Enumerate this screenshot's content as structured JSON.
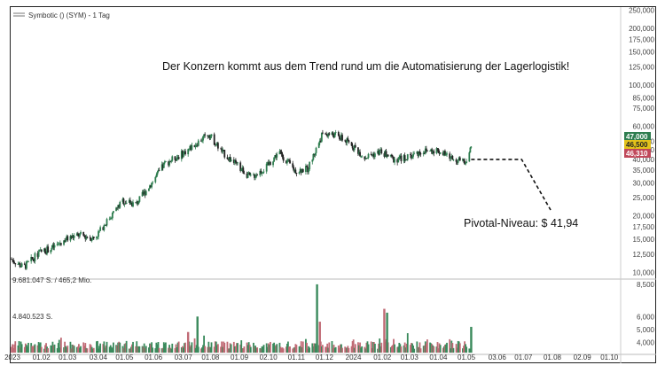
{
  "chart_header": {
    "symbol_label": "Symbotic () (SYM) - 1 Tag",
    "headline": "Der Konzern kommt aus dem Trend rund um die Automatisierung der Lagerlogistik!",
    "pivot_label": "Pivotal-Niveau: $ 41,94",
    "volume_label_top": "9.681.047 S. / 465,2 Mio.",
    "volume_label_mid": "4.840.523 S."
  },
  "colors": {
    "up": "#2e7d4f",
    "down": "#c0392b",
    "vol_up": "#3a8a5c",
    "vol_down": "#c06a75",
    "badge_green": "#2e7d4f",
    "badge_yellow": "#e3c21a",
    "badge_red": "#c0485a",
    "forecast": "#111111"
  },
  "chart_data": {
    "type": "candlestick",
    "y_scale": "log",
    "ylim": [
      9500,
      260000
    ],
    "y_ticks": [
      "250,000",
      "200,000",
      "175,000",
      "150,000",
      "125,000",
      "100,000",
      "85,000",
      "75,000",
      "60,000",
      "50,000",
      "45,000",
      "40,000",
      "35,000",
      "30,000",
      "25,000",
      "20,000",
      "17,500",
      "15,000",
      "12,500",
      "10,000"
    ],
    "y_tick_values": [
      250000,
      200000,
      175000,
      150000,
      125000,
      100000,
      85000,
      75000,
      60000,
      50000,
      45000,
      40000,
      35000,
      30000,
      25000,
      20000,
      17500,
      15000,
      12500,
      10000
    ],
    "x_ticks": [
      "2023",
      "01.02",
      "01.03",
      "03.04",
      "01.05",
      "01.06",
      "03.07",
      "01.08",
      "01.09",
      "02.10",
      "01.11",
      "01.12",
      "2024",
      "01.02",
      "01.03",
      "01.04",
      "01.05",
      "03.06",
      "01.07",
      "01.08",
      "02.09",
      "01.10"
    ],
    "price_path": [
      [
        "2023-01-01",
        11.8
      ],
      [
        "2023-01-15",
        10.6
      ],
      [
        "2023-02-01",
        12.8
      ],
      [
        "2023-02-15",
        13.5
      ],
      [
        "2023-03-01",
        15.0
      ],
      [
        "2023-03-15",
        15.8
      ],
      [
        "2023-04-01",
        15.2
      ],
      [
        "2023-04-15",
        19.0
      ],
      [
        "2023-05-01",
        24.0
      ],
      [
        "2023-05-15",
        23.0
      ],
      [
        "2023-06-01",
        30.0
      ],
      [
        "2023-06-15",
        38.0
      ],
      [
        "2023-07-01",
        42.0
      ],
      [
        "2023-07-15",
        47.0
      ],
      [
        "2023-08-01",
        55.0
      ],
      [
        "2023-08-15",
        44.0
      ],
      [
        "2023-09-01",
        37.0
      ],
      [
        "2023-09-15",
        32.0
      ],
      [
        "2023-10-01",
        36.0
      ],
      [
        "2023-10-15",
        44.0
      ],
      [
        "2023-11-01",
        35.0
      ],
      [
        "2023-11-15",
        35.5
      ],
      [
        "2023-12-01",
        55.0
      ],
      [
        "2023-12-15",
        54.0
      ],
      [
        "2024-01-01",
        48.0
      ],
      [
        "2024-01-15",
        41.0
      ],
      [
        "2024-02-01",
        44.0
      ],
      [
        "2024-02-15",
        40.0
      ],
      [
        "2024-03-01",
        41.0
      ],
      [
        "2024-03-15",
        44.0
      ],
      [
        "2024-04-01",
        45.0
      ],
      [
        "2024-04-15",
        41.0
      ],
      [
        "2024-05-01",
        38.5
      ],
      [
        "2024-05-08",
        46.3
      ]
    ],
    "last_values": {
      "high": "47,000",
      "mid": "46,500",
      "low": "46,310"
    },
    "forecast": [
      [
        "2024-05-08",
        40.0
      ],
      [
        "2024-07-01",
        40.0
      ],
      [
        "2024-08-01",
        21.5
      ]
    ],
    "volume": {
      "ylim": [
        3200,
        8700
      ],
      "y_ticks": [
        "8,500",
        "6,000",
        "5,000",
        "4,000"
      ],
      "y_tick_values": [
        8500,
        6000,
        5000,
        4000
      ],
      "spikes": [
        [
          "2023-07-20",
          6.0,
          "up"
        ],
        [
          "2023-07-10",
          4.8,
          "down"
        ],
        [
          "2023-11-25",
          8.5,
          "up"
        ],
        [
          "2023-11-28",
          5.6,
          "down"
        ],
        [
          "2024-02-05",
          6.6,
          "down"
        ],
        [
          "2024-02-08",
          6.3,
          "up"
        ],
        [
          "2024-05-08",
          5.2,
          "up"
        ]
      ]
    }
  }
}
